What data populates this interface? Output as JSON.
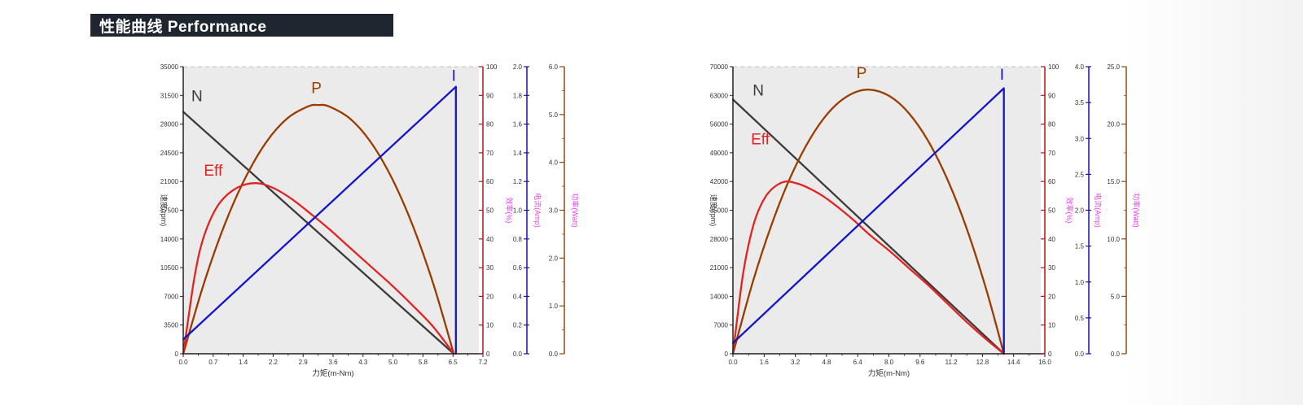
{
  "header": {
    "title": "性能曲线 Performance",
    "bg_color": "#20262f",
    "text_color": "#ffffff"
  },
  "colors": {
    "panel_bg": "#ebebeb",
    "axis_text": "#333333",
    "magenta": "#ee3dee",
    "spine": "#222222"
  },
  "chart_data": [
    {
      "type": "line",
      "title": "",
      "xlabel": "力矩(m-Nm)",
      "xlim": [
        0,
        7.2
      ],
      "x_tick_labels": [
        "0.0",
        "0.7",
        "1.4",
        "2.2",
        "2.9",
        "3.6",
        "4.3",
        "5.0",
        "5.8",
        "6.5",
        "7.2"
      ],
      "grid": false,
      "y_axes": [
        {
          "id": "speed",
          "label": "速度(rpm)",
          "lim": [
            0,
            35000
          ],
          "ticks": [
            0,
            3500,
            7000,
            10500,
            14000,
            17500,
            21000,
            24500,
            28000,
            31500,
            35000
          ],
          "decimals": 0,
          "color": "#222222",
          "title_color": "#333333"
        },
        {
          "id": "eff",
          "label": "效率(%)",
          "lim": [
            0,
            100
          ],
          "ticks": [
            0,
            10,
            20,
            30,
            40,
            50,
            60,
            70,
            80,
            90,
            100
          ],
          "decimals": 0,
          "color": "#b51414",
          "title_color": "#ee3dee"
        },
        {
          "id": "current",
          "label": "电流(Amp)",
          "lim": [
            0,
            2.0
          ],
          "ticks": [
            0,
            0.2,
            0.4,
            0.6,
            0.8,
            1.0,
            1.2,
            1.4,
            1.6,
            1.8,
            2.0
          ],
          "decimals": 1,
          "color": "#1414b5",
          "title_color": "#ee3dee"
        },
        {
          "id": "power",
          "label": "功率(Watt)",
          "lim": [
            0,
            6.0
          ],
          "ticks": [
            0,
            1,
            2,
            3,
            4,
            5,
            6
          ],
          "decimals": 1,
          "color": "#8a4a16",
          "title_color": "#ee3dee"
        }
      ],
      "series": [
        {
          "name": "N",
          "axis": "speed",
          "color": "#3b3b3b",
          "smooth": false,
          "label_at": [
            0.33,
            30800
          ],
          "points": [
            [
              0,
              29500
            ],
            [
              6.5,
              0
            ]
          ]
        },
        {
          "name": "P",
          "axis": "power",
          "color": "#9a3b00",
          "smooth": true,
          "label_at": [
            3.2,
            5.45
          ],
          "points": [
            [
              0,
              0
            ],
            [
              0.5,
              1.48
            ],
            [
              1.0,
              2.71
            ],
            [
              1.5,
              3.69
            ],
            [
              2.0,
              4.43
            ],
            [
              2.5,
              4.92
            ],
            [
              3.0,
              5.17
            ],
            [
              3.25,
              5.2
            ],
            [
              3.5,
              5.17
            ],
            [
              4.0,
              4.92
            ],
            [
              4.5,
              4.43
            ],
            [
              5.0,
              3.69
            ],
            [
              5.5,
              2.71
            ],
            [
              6.0,
              1.48
            ],
            [
              6.5,
              0
            ]
          ]
        },
        {
          "name": "Eff",
          "axis": "eff",
          "color": "#e32222",
          "smooth": true,
          "label_at": [
            0.72,
            62
          ],
          "points": [
            [
              0,
              0
            ],
            [
              0.12,
              12
            ],
            [
              0.25,
              25
            ],
            [
              0.4,
              36
            ],
            [
              0.6,
              45
            ],
            [
              0.85,
              52
            ],
            [
              1.15,
              56.5
            ],
            [
              1.5,
              59
            ],
            [
              1.85,
              59.3
            ],
            [
              2.2,
              57.5
            ],
            [
              2.6,
              54
            ],
            [
              3.0,
              49.5
            ],
            [
              3.5,
              43.5
            ],
            [
              4.0,
              37
            ],
            [
              4.5,
              30.5
            ],
            [
              5.0,
              24
            ],
            [
              5.5,
              17
            ],
            [
              6.0,
              9.5
            ],
            [
              6.5,
              0
            ]
          ]
        },
        {
          "name": "I",
          "axis": "current",
          "color": "#1414cc",
          "smooth": false,
          "label_at": [
            6.5,
            1.9
          ],
          "points": [
            [
              0,
              0.1
            ],
            [
              6.55,
              1.86
            ],
            [
              6.55,
              0
            ]
          ]
        }
      ]
    },
    {
      "type": "line",
      "title": "",
      "xlabel": "力矩(m-Nm)",
      "xlim": [
        0,
        16
      ],
      "x_tick_labels": [
        "0.0",
        "1.6",
        "3.2",
        "4.8",
        "6.4",
        "8.0",
        "9.6",
        "11.2",
        "12.8",
        "14.4",
        "16.0"
      ],
      "grid": false,
      "y_axes": [
        {
          "id": "speed",
          "label": "速度(rpm)",
          "lim": [
            0,
            70000
          ],
          "ticks": [
            0,
            7000,
            14000,
            21000,
            28000,
            35000,
            42000,
            49000,
            56000,
            63000,
            70000
          ],
          "decimals": 0,
          "color": "#222222",
          "title_color": "#333333"
        },
        {
          "id": "eff",
          "label": "效率(%)",
          "lim": [
            0,
            100
          ],
          "ticks": [
            0,
            10,
            20,
            30,
            40,
            50,
            60,
            70,
            80,
            90,
            100
          ],
          "decimals": 0,
          "color": "#b51414",
          "title_color": "#ee3dee"
        },
        {
          "id": "current",
          "label": "电流(Amp)",
          "lim": [
            0,
            4.0
          ],
          "ticks": [
            0,
            0.5,
            1.0,
            1.5,
            2.0,
            2.5,
            3.0,
            3.5,
            4.0
          ],
          "decimals": 1,
          "color": "#1414b5",
          "title_color": "#ee3dee"
        },
        {
          "id": "power",
          "label": "功率(Watt)",
          "lim": [
            0,
            25.0
          ],
          "ticks": [
            0,
            5,
            10,
            15,
            20,
            25
          ],
          "decimals": 1,
          "color": "#8a4a16",
          "title_color": "#ee3dee"
        }
      ],
      "series": [
        {
          "name": "N",
          "axis": "speed",
          "color": "#3b3b3b",
          "smooth": false,
          "label_at": [
            1.3,
            63000
          ],
          "points": [
            [
              0,
              62000
            ],
            [
              13.9,
              0
            ]
          ]
        },
        {
          "name": "P",
          "axis": "power",
          "color": "#9a3b00",
          "smooth": true,
          "label_at": [
            6.6,
            24.0
          ],
          "points": [
            [
              0,
              0
            ],
            [
              1.0,
              6.14
            ],
            [
              2.0,
              11.33
            ],
            [
              3.0,
              15.57
            ],
            [
              4.0,
              18.85
            ],
            [
              5.0,
              21.19
            ],
            [
              6.0,
              22.56
            ],
            [
              6.95,
              23.0
            ],
            [
              8.0,
              22.47
            ],
            [
              9.0,
              21.0
            ],
            [
              10.0,
              18.57
            ],
            [
              11.0,
              15.19
            ],
            [
              12.0,
              10.86
            ],
            [
              13.0,
              5.57
            ],
            [
              13.9,
              0
            ]
          ]
        },
        {
          "name": "Eff",
          "axis": "eff",
          "color": "#e32222",
          "smooth": true,
          "label_at": [
            1.4,
            73
          ],
          "points": [
            [
              0,
              0
            ],
            [
              0.25,
              14
            ],
            [
              0.5,
              27
            ],
            [
              0.8,
              38
            ],
            [
              1.2,
              48
            ],
            [
              1.7,
              55
            ],
            [
              2.2,
              58.5
            ],
            [
              2.7,
              60
            ],
            [
              3.2,
              59.5
            ],
            [
              3.8,
              58
            ],
            [
              4.6,
              55
            ],
            [
              5.4,
              51
            ],
            [
              6.2,
              46.5
            ],
            [
              7.0,
              41.5
            ],
            [
              8.0,
              36
            ],
            [
              9.0,
              30
            ],
            [
              10.0,
              24
            ],
            [
              11.0,
              17.5
            ],
            [
              12.0,
              11
            ],
            [
              13.0,
              5
            ],
            [
              13.9,
              0
            ]
          ]
        },
        {
          "name": "I",
          "axis": "current",
          "color": "#1414cc",
          "smooth": false,
          "label_at": [
            13.8,
            3.82
          ],
          "points": [
            [
              0,
              0.15
            ],
            [
              13.9,
              3.7
            ],
            [
              13.9,
              0
            ]
          ]
        }
      ]
    }
  ]
}
